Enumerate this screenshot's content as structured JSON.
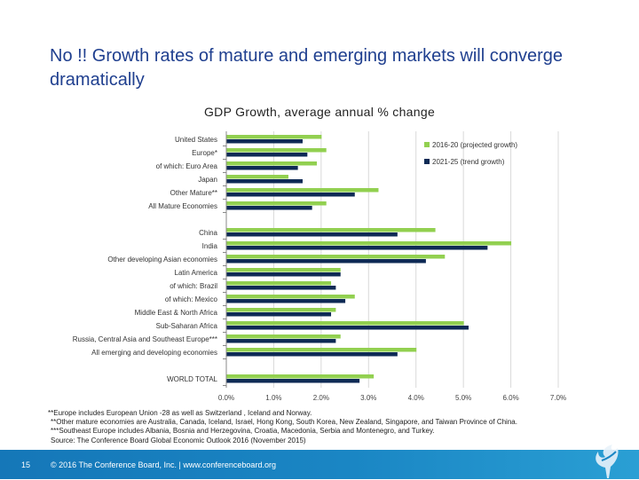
{
  "slide": {
    "title": "No !! Growth rates of mature and emerging markets will converge dramatically",
    "page_number": "15",
    "footer_text": "© 2016 The Conference Board, Inc.  |  www.conferenceboard.org",
    "footnotes": [
      "**Europe includes European Union -28 as well as Switzerland , Iceland and Norway.",
      "**Other mature economies are Australia, Canada, Iceland, Israel, Hong Kong, South Korea, New Zealand, Singapore, and Taiwan Province of China.",
      "***Southeast Europe includes Albania, Bosnia and Herzegovina, Croatia, Macedonia, Serbia and Montenegro, and Turkey.",
      "Source: The Conference Board Global Economic Outlook 2016  (November 2015)"
    ]
  },
  "chart_data": {
    "type": "bar",
    "orientation": "horizontal",
    "title": "GDP Growth, average annual % change",
    "categories": [
      "United States",
      "Europe*",
      "of which: Euro Area",
      "Japan",
      "Other Mature**",
      "All Mature Economies",
      "China",
      "India",
      "Other developing Asian economies",
      "Latin America",
      "of which: Brazil",
      "of which: Mexico",
      "Middle East & North Africa",
      "Sub-Saharan Africa",
      "Russia, Central Asia and Southeast Europe***",
      "All emerging and developing economies",
      "WORLD TOTAL"
    ],
    "series": [
      {
        "name": "2016-20 (projected growth)",
        "color": "#92d050",
        "values": [
          2.0,
          2.1,
          1.9,
          1.3,
          3.2,
          2.1,
          4.4,
          6.0,
          4.6,
          2.4,
          2.2,
          2.7,
          2.3,
          5.0,
          2.4,
          4.0,
          3.1
        ]
      },
      {
        "name": "2021-25 (trend growth)",
        "color": "#0e2a55",
        "values": [
          1.6,
          1.7,
          1.5,
          1.6,
          2.7,
          1.8,
          3.6,
          5.5,
          4.2,
          2.4,
          2.3,
          2.5,
          2.2,
          5.1,
          2.3,
          3.6,
          2.8
        ]
      }
    ],
    "xlim": [
      0,
      7
    ],
    "xticks": [
      "0.0%",
      "1.0%",
      "2.0%",
      "3.0%",
      "4.0%",
      "5.0%",
      "6.0%",
      "7.0%"
    ],
    "grid": true,
    "legend": "top-right"
  }
}
